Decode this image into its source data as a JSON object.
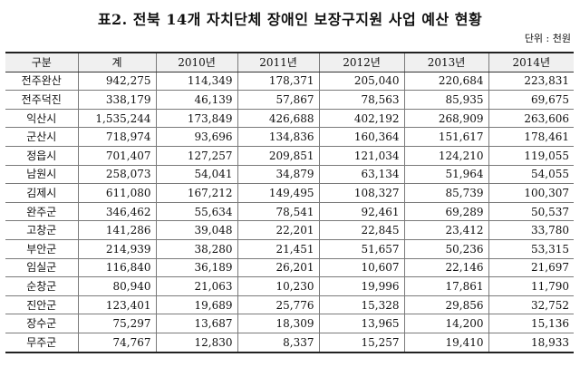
{
  "title": "표2. 전북 14개 자치단체 장애인 보장구지원 사업 예산 현황",
  "unit": "단위 : 천원",
  "table": {
    "headers": [
      "구분",
      "계",
      "2010년",
      "2011년",
      "2012년",
      "2013년",
      "2014년"
    ],
    "rows": [
      [
        "전주완산",
        "942,275",
        "114,349",
        "178,371",
        "205,040",
        "220,684",
        "223,831"
      ],
      [
        "전주덕진",
        "338,179",
        "46,139",
        "57,867",
        "78,563",
        "85,935",
        "69,675"
      ],
      [
        "익산시",
        "1,535,244",
        "173,849",
        "426,688",
        "402,192",
        "268,909",
        "263,606"
      ],
      [
        "군산시",
        "718,974",
        "93,696",
        "134,836",
        "160,364",
        "151,617",
        "178,461"
      ],
      [
        "정읍시",
        "701,407",
        "127,257",
        "209,851",
        "121,034",
        "124,210",
        "119,055"
      ],
      [
        "남원시",
        "258,073",
        "54,041",
        "34,879",
        "63,134",
        "51,964",
        "54,055"
      ],
      [
        "김제시",
        "611,080",
        "167,212",
        "149,495",
        "108,327",
        "85,739",
        "100,307"
      ],
      [
        "완주군",
        "346,462",
        "55,634",
        "78,541",
        "92,461",
        "69,289",
        "50,537"
      ],
      [
        "고창군",
        "141,286",
        "39,048",
        "22,201",
        "22,845",
        "23,412",
        "33,780"
      ],
      [
        "부안군",
        "214,939",
        "38,280",
        "21,451",
        "51,657",
        "50,236",
        "53,315"
      ],
      [
        "임실군",
        "116,840",
        "36,189",
        "26,201",
        "10,607",
        "22,146",
        "21,697"
      ],
      [
        "순창군",
        "80,940",
        "21,063",
        "10,230",
        "19,996",
        "17,861",
        "11,790"
      ],
      [
        "진안군",
        "123,401",
        "19,689",
        "25,776",
        "15,328",
        "29,856",
        "32,752"
      ],
      [
        "장수군",
        "75,297",
        "13,687",
        "18,309",
        "13,965",
        "14,200",
        "15,136"
      ],
      [
        "무주군",
        "74,767",
        "12,830",
        "8,337",
        "15,257",
        "19,410",
        "18,933"
      ]
    ]
  }
}
